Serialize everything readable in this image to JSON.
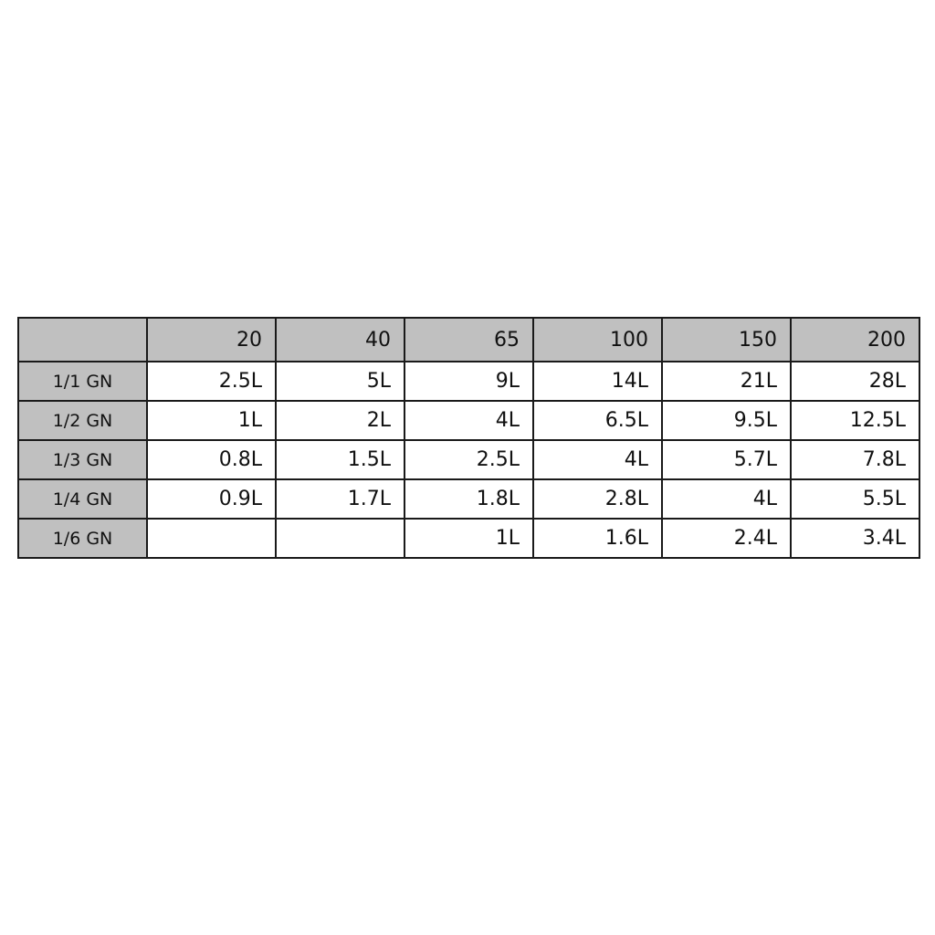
{
  "table": {
    "header": [
      "",
      "20",
      "40",
      "65",
      "100",
      "150",
      "200"
    ],
    "rows": [
      {
        "label": "1/1 GN",
        "cells": [
          "2.5L",
          "5L",
          "9L",
          "14L",
          "21L",
          "28L"
        ]
      },
      {
        "label": "1/2 GN",
        "cells": [
          "1L",
          "2L",
          "4L",
          "6.5L",
          "9.5L",
          "12.5L"
        ]
      },
      {
        "label": "1/3 GN",
        "cells": [
          "0.8L",
          "1.5L",
          "2.5L",
          "4L",
          "5.7L",
          "7.8L"
        ]
      },
      {
        "label": "1/4 GN",
        "cells": [
          "0.9L",
          "1.7L",
          "1.8L",
          "2.8L",
          "4L",
          "5.5L"
        ]
      },
      {
        "label": "1/6 GN",
        "cells": [
          "",
          "",
          "1L",
          "1.6L",
          "2.4L",
          "3.4L"
        ]
      }
    ]
  },
  "colors": {
    "header_bg": "#c0c0c0",
    "border": "#1a1a1a"
  }
}
